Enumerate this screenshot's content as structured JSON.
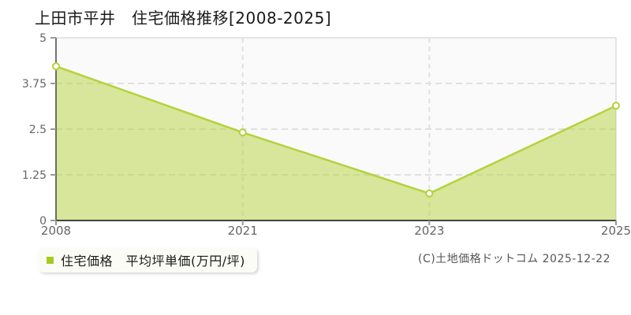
{
  "header": {
    "title": "上田市平井　住宅価格推移[2008-2025]"
  },
  "legend": {
    "marker_color": "#a3cc21",
    "label": "住宅価格　平均坪単価(万円/坪)"
  },
  "footer": {
    "copyright": "(C)土地価格ドットコム 2025-12-22"
  },
  "chart_data": {
    "type": "area",
    "title": "上田市平井 住宅価格推移[2008-2025]",
    "x": [
      "2008",
      "2021",
      "2023",
      "2025"
    ],
    "series": [
      {
        "name": "住宅価格 平均坪単価(万円/坪)",
        "values": [
          4.22,
          2.41,
          0.74,
          3.14
        ]
      }
    ],
    "xlabel": "",
    "ylabel": "平均坪単価(万円/坪)",
    "ylim": [
      0,
      5
    ],
    "yticks": [
      "0",
      "1.25",
      "2.5",
      "3.75",
      "5"
    ],
    "grid": "dashed",
    "legend_position": "bottom-left",
    "style": {
      "line": "#b4d23c",
      "fill": "#b4d23c",
      "fill_opacity": 0.5,
      "marker_fill": "#ffffff",
      "plot_bg": "#fafafa",
      "grid_color": "#e0e0e0",
      "border_color": "#dddddd",
      "axis_color": "#444444",
      "tick_color": "#999999",
      "label_color": "#666666"
    }
  }
}
